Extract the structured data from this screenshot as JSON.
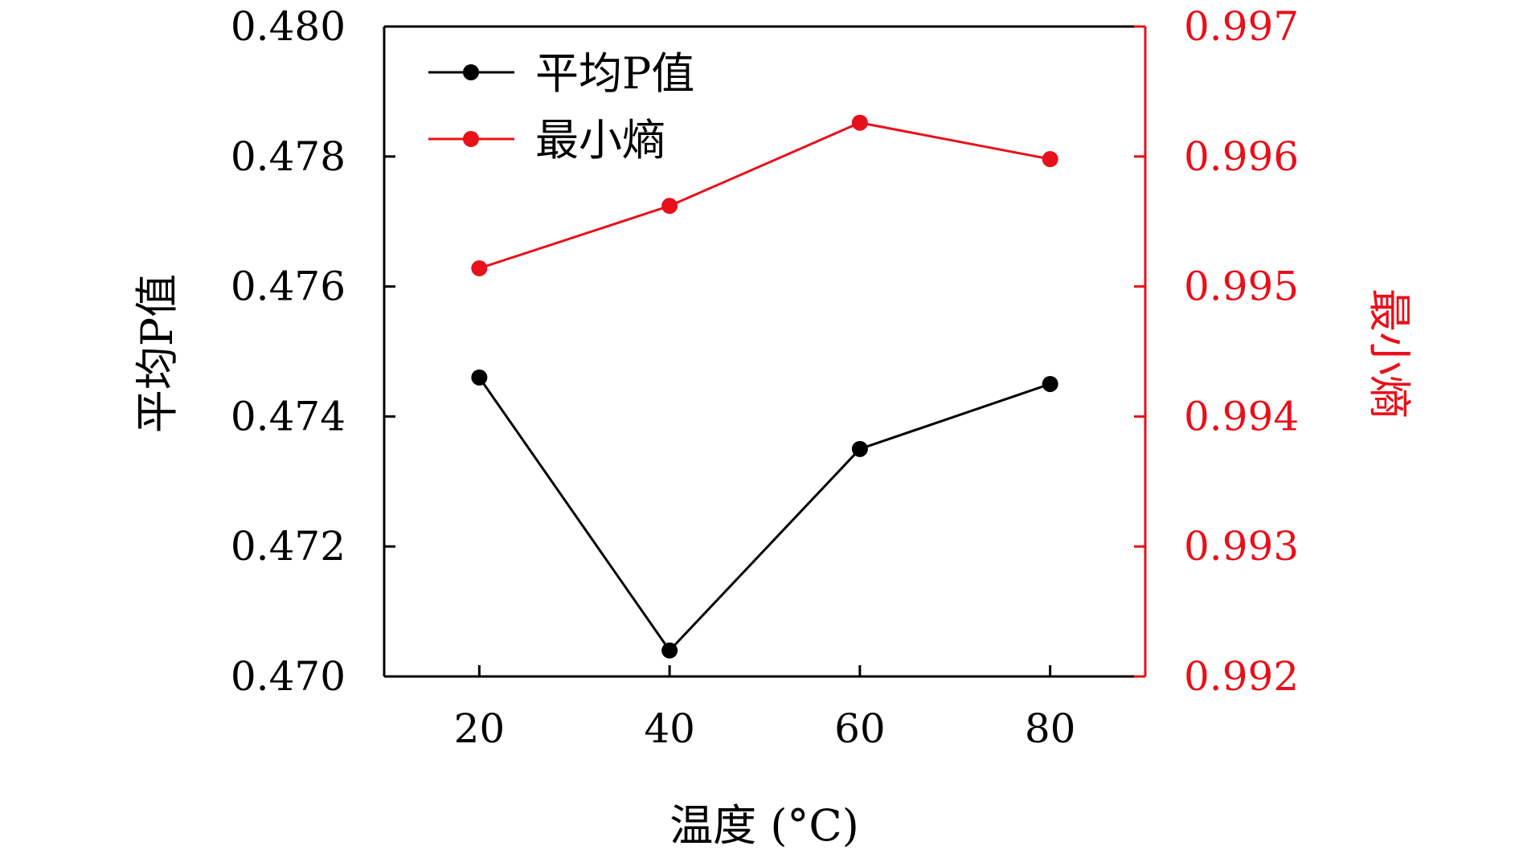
{
  "chart_data": {
    "type": "line",
    "x": [
      20,
      40,
      60,
      80
    ],
    "xticks": [
      "20",
      "40",
      "60",
      "80"
    ],
    "xlabel": "温度 (°C)",
    "xlim": [
      10,
      90
    ],
    "y_left": {
      "label": "平均P值",
      "ylim": [
        0.47,
        0.48
      ],
      "ticks": [
        "0.470",
        "0.472",
        "0.474",
        "0.476",
        "0.478",
        "0.480"
      ],
      "color": "#000000"
    },
    "y_right": {
      "label": "最小熵",
      "ylim": [
        0.992,
        0.997
      ],
      "ticks": [
        "0.992",
        "0.993",
        "0.994",
        "0.995",
        "0.996",
        "0.997"
      ],
      "color": "#e8101a"
    },
    "series": [
      {
        "name": "平均P值",
        "axis": "left",
        "color": "#000000",
        "values": [
          0.4746,
          0.4704,
          0.4735,
          0.4745
        ]
      },
      {
        "name": "最小熵",
        "axis": "right",
        "color": "#e8101a",
        "values": [
          0.99514,
          0.99562,
          0.99626,
          0.99598
        ]
      }
    ],
    "legend": "top-left",
    "grid": false
  }
}
